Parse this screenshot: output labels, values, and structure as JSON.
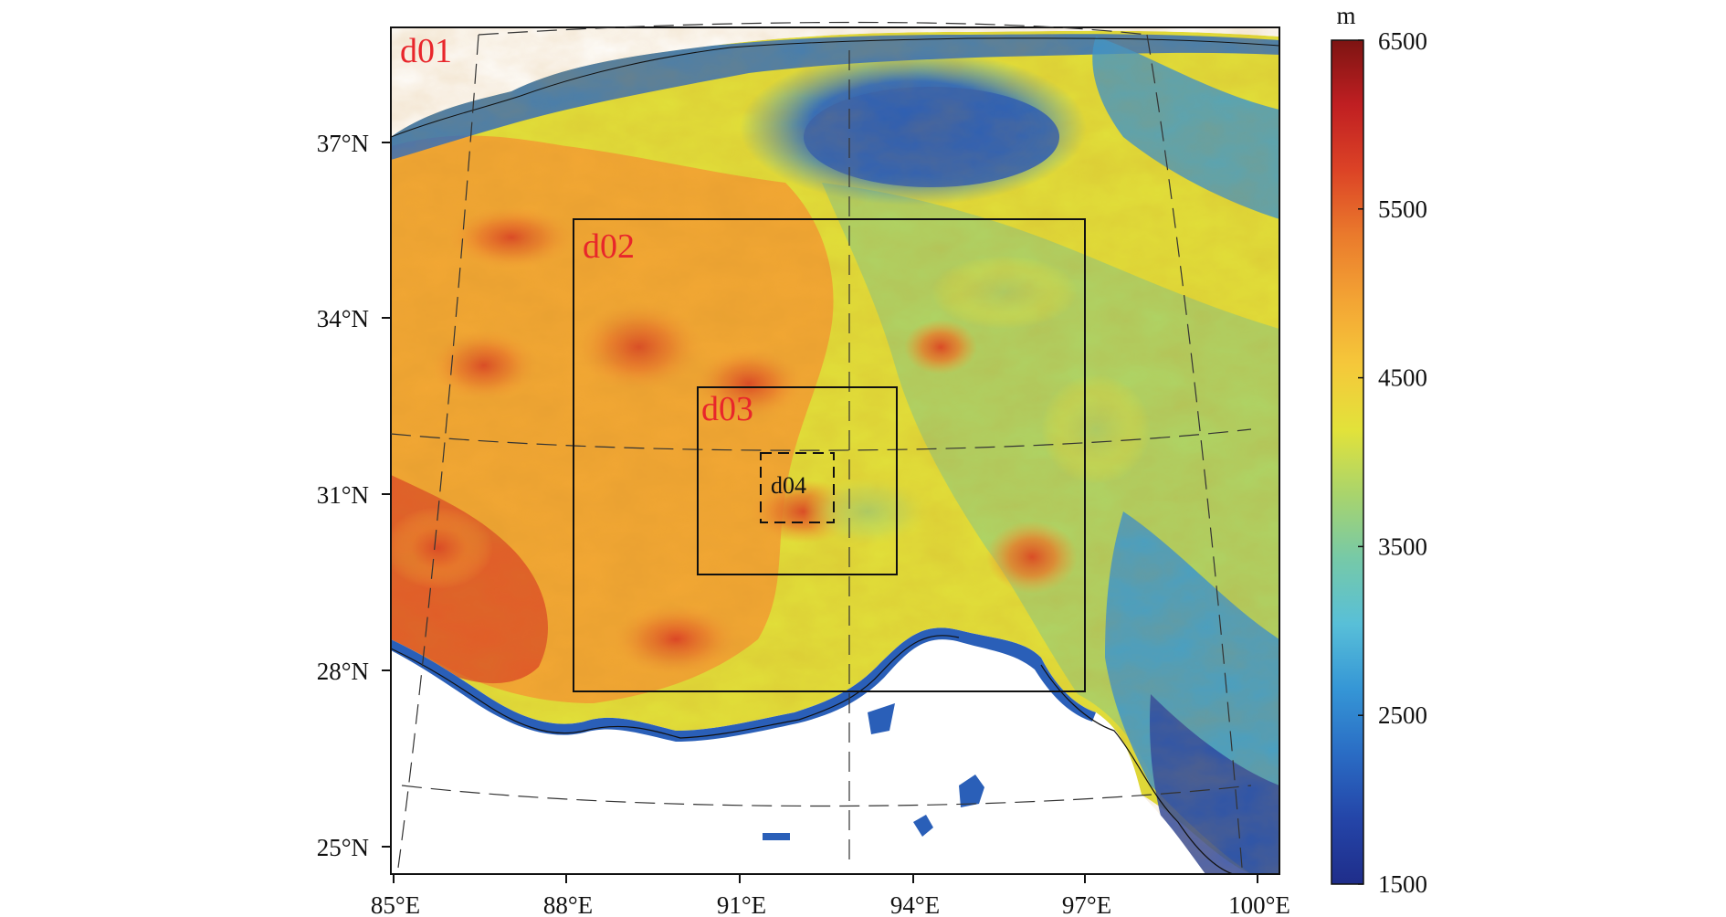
{
  "colors": {
    "domain_label": "#e8262b",
    "d04_label": "#111111",
    "colormap": [
      "#1f2d8a",
      "#2445a8",
      "#2a6cc4",
      "#3596d6",
      "#58bfd8",
      "#76c9a8",
      "#a9d46c",
      "#e2e23a",
      "#f5c83a",
      "#f3a434",
      "#ea7a2c",
      "#dc4326",
      "#c01f22",
      "#7d1412"
    ]
  },
  "map": {
    "longitude_labels": [
      "85°E",
      "88°E",
      "91°E",
      "94°E",
      "97°E",
      "100°E"
    ],
    "latitude_labels": [
      "37°N",
      "34°N",
      "31°N",
      "28°N",
      "25°N"
    ],
    "domains": [
      {
        "id": "d01",
        "label": "d01"
      },
      {
        "id": "d02",
        "label": "d02"
      },
      {
        "id": "d03",
        "label": "d03"
      },
      {
        "id": "d04",
        "label": "d04"
      }
    ]
  },
  "colorbar": {
    "unit": "m",
    "min": 1500,
    "max": 6500,
    "tick_labels": [
      "6500",
      "5500",
      "4500",
      "3500",
      "2500",
      "1500"
    ]
  }
}
